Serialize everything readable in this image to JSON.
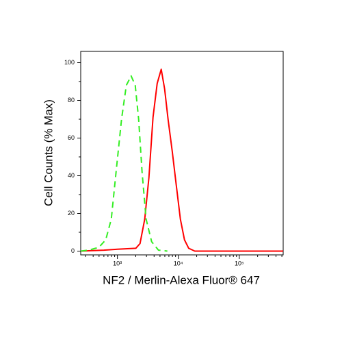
{
  "chart_data": {
    "type": "line",
    "x_label": "NF2 / Merlin-Alexa Fluor® 647",
    "y_label": "Cell Counts (% Max)",
    "x_scale": "log",
    "xlim": [
      250,
      525000
    ],
    "ylim": [
      -2,
      106
    ],
    "xticks": [
      {
        "value": 1000,
        "label": "10³"
      },
      {
        "value": 10000,
        "label": "10⁴"
      },
      {
        "value": 100000,
        "label": "10⁵"
      }
    ],
    "x_minor_ticks": [
      300,
      400,
      500,
      600,
      700,
      800,
      900,
      2000,
      3000,
      4000,
      5000,
      6000,
      7000,
      8000,
      9000,
      20000,
      30000,
      40000,
      50000,
      60000,
      70000,
      80000,
      90000,
      200000,
      300000,
      400000,
      500000
    ],
    "yticks": [
      0,
      20,
      40,
      60,
      80,
      100
    ],
    "y_minor_ticks": [
      10,
      30,
      50,
      70,
      90
    ],
    "series": [
      {
        "color": "#ff0000",
        "dashed": false,
        "x": [
          250,
          600,
          1000,
          2000,
          2350,
          2810,
          3290,
          3840,
          4490,
          5240,
          5960,
          6780,
          7930,
          9250,
          10800,
          12600,
          14800,
          18600,
          524000
        ],
        "values": [
          0,
          0.5,
          1,
          1.5,
          4,
          17,
          39,
          71,
          89,
          96.5,
          86,
          70,
          53,
          35,
          17,
          6,
          1.5,
          0,
          0
        ]
      },
      {
        "color": "#33ee22",
        "dashed": true,
        "x": [
          250,
          337,
          497,
          644,
          793,
          950,
          1168,
          1400,
          1680,
          1960,
          2230,
          2540,
          2960,
          3650,
          4720,
          6610
        ],
        "values": [
          0,
          0.5,
          2,
          6,
          17,
          42,
          70,
          88,
          93,
          88,
          70,
          42,
          17,
          5,
          0.5,
          0
        ]
      }
    ]
  }
}
